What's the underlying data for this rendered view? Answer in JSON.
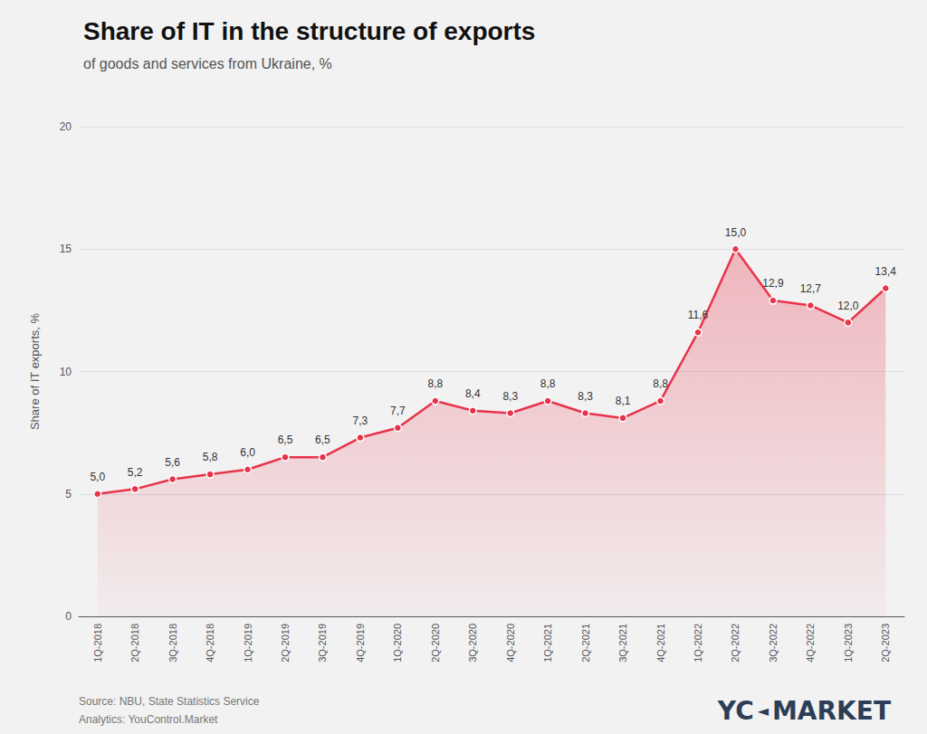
{
  "chart_data": {
    "type": "line",
    "title": "Share of IT in the structure of exports",
    "subtitle": "of goods and services from Ukraine, %",
    "ylabel": "Share of IT exports, %",
    "annotations": [
      "Source: NBU, State Statistics Service",
      "Analytics: YouControl.Market",
      "YC",
      "◄",
      "MARKET"
    ],
    "categories": [
      "1Q-2018",
      "2Q-2018",
      "3Q-2018",
      "4Q-2018",
      "1Q-2019",
      "2Q-2019",
      "3Q-2019",
      "4Q-2019",
      "1Q-2020",
      "2Q-2020",
      "3Q-2020",
      "4Q-2020",
      "1Q-2021",
      "2Q-2021",
      "3Q-2021",
      "4Q-2021",
      "1Q-2022",
      "2Q-2022",
      "3Q-2022",
      "4Q-2022",
      "1Q-2023",
      "2Q-2023"
    ],
    "values": [
      5.0,
      5.2,
      5.6,
      5.8,
      6.0,
      6.5,
      6.5,
      7.3,
      7.7,
      8.8,
      8.4,
      8.3,
      8.8,
      8.3,
      8.1,
      8.8,
      11.6,
      15.0,
      12.9,
      12.7,
      12.0,
      13.4
    ],
    "value_labels": [
      "5,0",
      "5,2",
      "5,6",
      "5,8",
      "6,0",
      "6,5",
      "6,5",
      "7,3",
      "7,7",
      "8,8",
      "8,4",
      "8,3",
      "8,8",
      "8,3",
      "8,1",
      "8,8",
      "11,6",
      "15,0",
      "12,9",
      "12,7",
      "12,0",
      "13,4"
    ],
    "color": "#e8334a",
    "marker": "circle",
    "ylim": [
      0,
      20
    ],
    "yticks": [
      0,
      5,
      10,
      15,
      20
    ],
    "grid": true,
    "data_labels": true
  }
}
